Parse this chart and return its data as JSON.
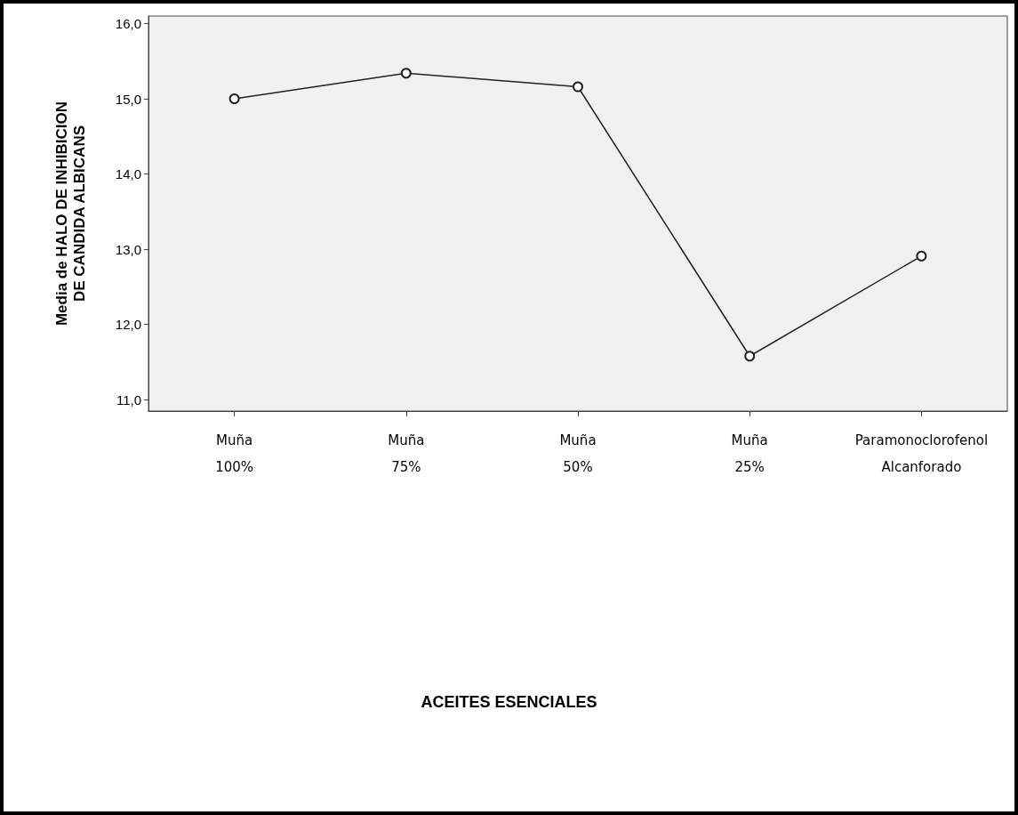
{
  "chart_data": {
    "type": "line",
    "categories": [
      "Muña\n100%",
      "Muña\n75%",
      "Muña\n50%",
      "Muña\n25%",
      "Paramonoclorofenol\nAlcanforado"
    ],
    "series": [
      {
        "color": "#222222",
        "values": [
          15.0,
          15.34,
          15.16,
          11.58,
          12.91
        ]
      }
    ],
    "annotations": [
      "ACEITES ESENCIALES"
    ],
    "ylabel": "Media de HALO DE INHIBICION\nDE CANDIDA ALBICANS",
    "ylim": [
      10.85,
      16.1
    ],
    "yticks": [
      {
        "value": 11,
        "label": "11,0"
      },
      {
        "value": 12,
        "label": "12,0"
      },
      {
        "value": 13,
        "label": "13,0"
      },
      {
        "value": 14,
        "label": "14,0"
      },
      {
        "value": 15,
        "label": "15,0"
      },
      {
        "value": 16,
        "label": "16,0"
      }
    ],
    "grid": false,
    "marker": "circle",
    "line_style": "solid"
  }
}
